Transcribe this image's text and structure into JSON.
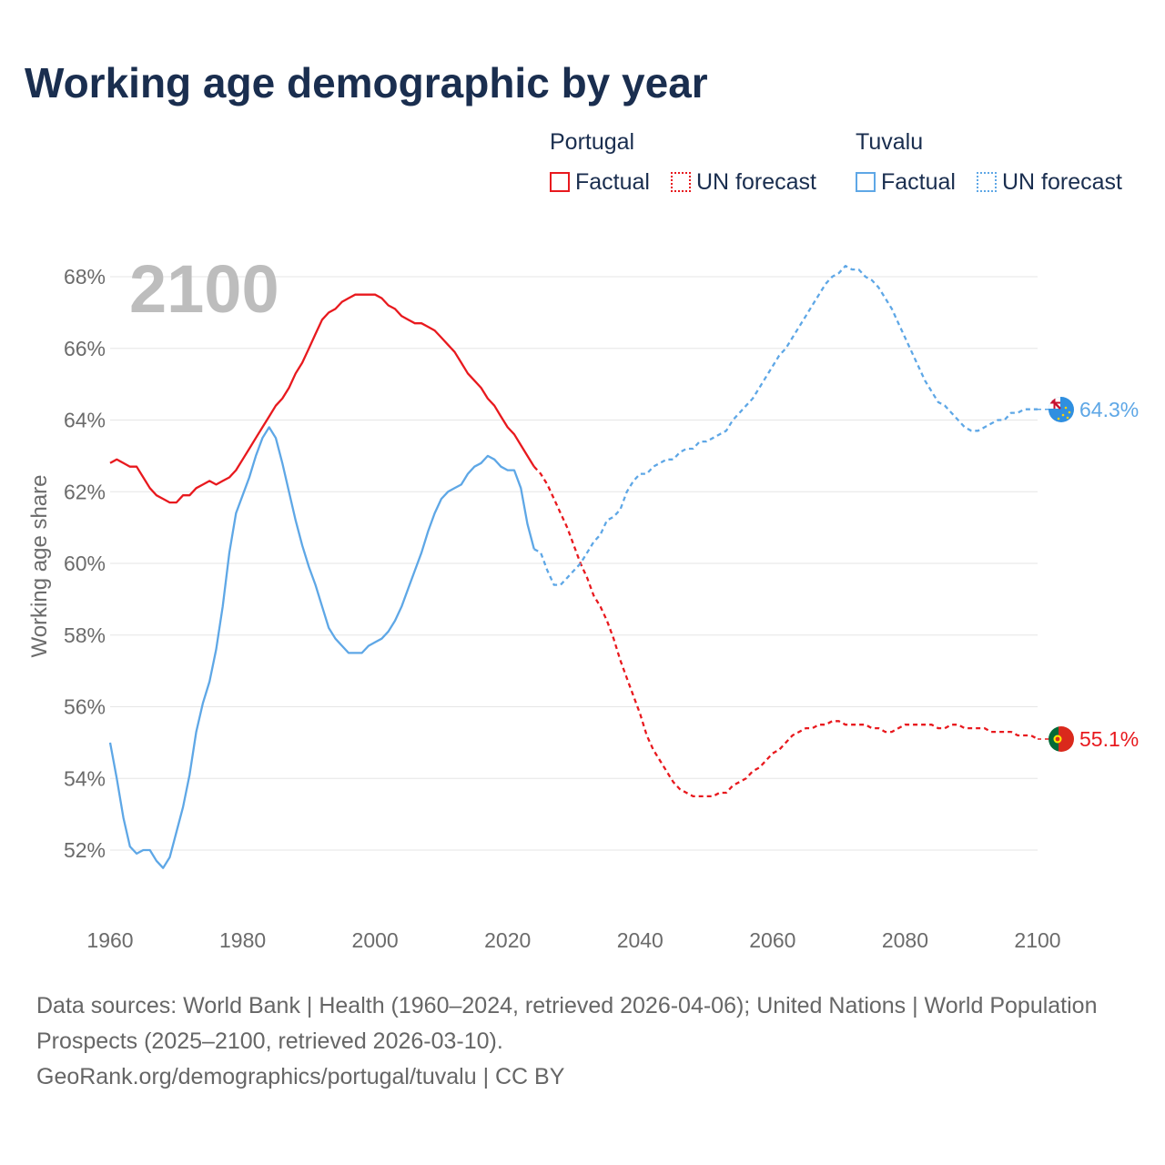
{
  "title": "Working age demographic by year",
  "legend": {
    "groups": [
      {
        "name": "Portugal",
        "factual_label": "Factual",
        "forecast_label": "UN forecast",
        "color": "#e8191e"
      },
      {
        "name": "Tuvalu",
        "factual_label": "Factual",
        "forecast_label": "UN forecast",
        "color": "#5ea7e6"
      }
    ]
  },
  "year_watermark": "2100",
  "footer": {
    "line1": "Data sources: World Bank | Health (1960–2024, retrieved 2026-04-06); United Nations | World Population Prospects (2025–2100, retrieved 2026-03-10).",
    "line2": "GeoRank.org/demographics/portugal/tuvalu | CC BY"
  },
  "chart_data": {
    "type": "line",
    "title": "Working age demographic by year",
    "xlabel": "",
    "ylabel": "Working age share",
    "xlim": [
      1960,
      2100
    ],
    "ylim": [
      50.5,
      69
    ],
    "x_ticks": [
      1960,
      1980,
      2000,
      2020,
      2040,
      2060,
      2080,
      2100
    ],
    "y_ticks": [
      52,
      54,
      56,
      58,
      60,
      62,
      64,
      66,
      68
    ],
    "y_tick_suffix": "%",
    "grid": true,
    "factual_end_year": 2024,
    "series": [
      {
        "name": "Portugal",
        "color": "#e8191e",
        "end_label": "55.1%",
        "points": [
          [
            1960,
            62.8
          ],
          [
            1961,
            62.9
          ],
          [
            1962,
            62.8
          ],
          [
            1963,
            62.7
          ],
          [
            1964,
            62.7
          ],
          [
            1965,
            62.4
          ],
          [
            1966,
            62.1
          ],
          [
            1967,
            61.9
          ],
          [
            1968,
            61.8
          ],
          [
            1969,
            61.7
          ],
          [
            1970,
            61.7
          ],
          [
            1971,
            61.9
          ],
          [
            1972,
            61.9
          ],
          [
            1973,
            62.1
          ],
          [
            1974,
            62.2
          ],
          [
            1975,
            62.3
          ],
          [
            1976,
            62.2
          ],
          [
            1977,
            62.3
          ],
          [
            1978,
            62.4
          ],
          [
            1979,
            62.6
          ],
          [
            1980,
            62.9
          ],
          [
            1981,
            63.2
          ],
          [
            1982,
            63.5
          ],
          [
            1983,
            63.8
          ],
          [
            1984,
            64.1
          ],
          [
            1985,
            64.4
          ],
          [
            1986,
            64.6
          ],
          [
            1987,
            64.9
          ],
          [
            1988,
            65.3
          ],
          [
            1989,
            65.6
          ],
          [
            1990,
            66.0
          ],
          [
            1991,
            66.4
          ],
          [
            1992,
            66.8
          ],
          [
            1993,
            67.0
          ],
          [
            1994,
            67.1
          ],
          [
            1995,
            67.3
          ],
          [
            1996,
            67.4
          ],
          [
            1997,
            67.5
          ],
          [
            1998,
            67.5
          ],
          [
            1999,
            67.5
          ],
          [
            2000,
            67.5
          ],
          [
            2001,
            67.4
          ],
          [
            2002,
            67.2
          ],
          [
            2003,
            67.1
          ],
          [
            2004,
            66.9
          ],
          [
            2005,
            66.8
          ],
          [
            2006,
            66.7
          ],
          [
            2007,
            66.7
          ],
          [
            2008,
            66.6
          ],
          [
            2009,
            66.5
          ],
          [
            2010,
            66.3
          ],
          [
            2011,
            66.1
          ],
          [
            2012,
            65.9
          ],
          [
            2013,
            65.6
          ],
          [
            2014,
            65.3
          ],
          [
            2015,
            65.1
          ],
          [
            2016,
            64.9
          ],
          [
            2017,
            64.6
          ],
          [
            2018,
            64.4
          ],
          [
            2019,
            64.1
          ],
          [
            2020,
            63.8
          ],
          [
            2021,
            63.6
          ],
          [
            2022,
            63.3
          ],
          [
            2023,
            63.0
          ],
          [
            2024,
            62.7
          ],
          [
            2025,
            62.5
          ],
          [
            2026,
            62.2
          ],
          [
            2027,
            61.8
          ],
          [
            2028,
            61.4
          ],
          [
            2029,
            61.0
          ],
          [
            2030,
            60.5
          ],
          [
            2031,
            60.0
          ],
          [
            2032,
            59.6
          ],
          [
            2033,
            59.1
          ],
          [
            2034,
            58.8
          ],
          [
            2035,
            58.4
          ],
          [
            2036,
            57.9
          ],
          [
            2037,
            57.3
          ],
          [
            2038,
            56.8
          ],
          [
            2039,
            56.3
          ],
          [
            2040,
            55.8
          ],
          [
            2041,
            55.2
          ],
          [
            2042,
            54.8
          ],
          [
            2043,
            54.5
          ],
          [
            2044,
            54.2
          ],
          [
            2045,
            53.9
          ],
          [
            2046,
            53.7
          ],
          [
            2047,
            53.6
          ],
          [
            2048,
            53.5
          ],
          [
            2049,
            53.5
          ],
          [
            2050,
            53.5
          ],
          [
            2051,
            53.5
          ],
          [
            2052,
            53.6
          ],
          [
            2053,
            53.6
          ],
          [
            2054,
            53.8
          ],
          [
            2055,
            53.9
          ],
          [
            2056,
            54.0
          ],
          [
            2057,
            54.2
          ],
          [
            2058,
            54.3
          ],
          [
            2059,
            54.5
          ],
          [
            2060,
            54.7
          ],
          [
            2061,
            54.8
          ],
          [
            2062,
            55.0
          ],
          [
            2063,
            55.2
          ],
          [
            2064,
            55.3
          ],
          [
            2065,
            55.4
          ],
          [
            2066,
            55.4
          ],
          [
            2067,
            55.5
          ],
          [
            2068,
            55.5
          ],
          [
            2069,
            55.6
          ],
          [
            2070,
            55.6
          ],
          [
            2071,
            55.5
          ],
          [
            2072,
            55.5
          ],
          [
            2073,
            55.5
          ],
          [
            2074,
            55.5
          ],
          [
            2075,
            55.4
          ],
          [
            2076,
            55.4
          ],
          [
            2077,
            55.3
          ],
          [
            2078,
            55.3
          ],
          [
            2079,
            55.4
          ],
          [
            2080,
            55.5
          ],
          [
            2081,
            55.5
          ],
          [
            2082,
            55.5
          ],
          [
            2083,
            55.5
          ],
          [
            2084,
            55.5
          ],
          [
            2085,
            55.4
          ],
          [
            2086,
            55.4
          ],
          [
            2087,
            55.5
          ],
          [
            2088,
            55.5
          ],
          [
            2089,
            55.4
          ],
          [
            2090,
            55.4
          ],
          [
            2091,
            55.4
          ],
          [
            2092,
            55.4
          ],
          [
            2093,
            55.3
          ],
          [
            2094,
            55.3
          ],
          [
            2095,
            55.3
          ],
          [
            2096,
            55.3
          ],
          [
            2097,
            55.2
          ],
          [
            2098,
            55.2
          ],
          [
            2099,
            55.2
          ],
          [
            2100,
            55.1
          ]
        ]
      },
      {
        "name": "Tuvalu",
        "color": "#5ea7e6",
        "end_label": "64.3%",
        "points": [
          [
            1960,
            55.0
          ],
          [
            1961,
            54.0
          ],
          [
            1962,
            52.9
          ],
          [
            1963,
            52.1
          ],
          [
            1964,
            51.9
          ],
          [
            1965,
            52.0
          ],
          [
            1966,
            52.0
          ],
          [
            1967,
            51.7
          ],
          [
            1968,
            51.5
          ],
          [
            1969,
            51.8
          ],
          [
            1970,
            52.5
          ],
          [
            1971,
            53.2
          ],
          [
            1972,
            54.1
          ],
          [
            1973,
            55.3
          ],
          [
            1974,
            56.1
          ],
          [
            1975,
            56.7
          ],
          [
            1976,
            57.6
          ],
          [
            1977,
            58.8
          ],
          [
            1978,
            60.3
          ],
          [
            1979,
            61.4
          ],
          [
            1980,
            61.9
          ],
          [
            1981,
            62.4
          ],
          [
            1982,
            63.0
          ],
          [
            1983,
            63.5
          ],
          [
            1984,
            63.8
          ],
          [
            1985,
            63.5
          ],
          [
            1986,
            62.8
          ],
          [
            1987,
            62.0
          ],
          [
            1988,
            61.2
          ],
          [
            1989,
            60.5
          ],
          [
            1990,
            59.9
          ],
          [
            1991,
            59.4
          ],
          [
            1992,
            58.8
          ],
          [
            1993,
            58.2
          ],
          [
            1994,
            57.9
          ],
          [
            1995,
            57.7
          ],
          [
            1996,
            57.5
          ],
          [
            1997,
            57.5
          ],
          [
            1998,
            57.5
          ],
          [
            1999,
            57.7
          ],
          [
            2000,
            57.8
          ],
          [
            2001,
            57.9
          ],
          [
            2002,
            58.1
          ],
          [
            2003,
            58.4
          ],
          [
            2004,
            58.8
          ],
          [
            2005,
            59.3
          ],
          [
            2006,
            59.8
          ],
          [
            2007,
            60.3
          ],
          [
            2008,
            60.9
          ],
          [
            2009,
            61.4
          ],
          [
            2010,
            61.8
          ],
          [
            2011,
            62.0
          ],
          [
            2012,
            62.1
          ],
          [
            2013,
            62.2
          ],
          [
            2014,
            62.5
          ],
          [
            2015,
            62.7
          ],
          [
            2016,
            62.8
          ],
          [
            2017,
            63.0
          ],
          [
            2018,
            62.9
          ],
          [
            2019,
            62.7
          ],
          [
            2020,
            62.6
          ],
          [
            2021,
            62.6
          ],
          [
            2022,
            62.1
          ],
          [
            2023,
            61.1
          ],
          [
            2024,
            60.4
          ],
          [
            2025,
            60.3
          ],
          [
            2026,
            59.8
          ],
          [
            2027,
            59.4
          ],
          [
            2028,
            59.4
          ],
          [
            2029,
            59.6
          ],
          [
            2030,
            59.8
          ],
          [
            2031,
            60.0
          ],
          [
            2032,
            60.3
          ],
          [
            2033,
            60.6
          ],
          [
            2034,
            60.8
          ],
          [
            2035,
            61.2
          ],
          [
            2036,
            61.3
          ],
          [
            2037,
            61.5
          ],
          [
            2038,
            62.0
          ],
          [
            2039,
            62.3
          ],
          [
            2040,
            62.5
          ],
          [
            2041,
            62.5
          ],
          [
            2042,
            62.7
          ],
          [
            2043,
            62.8
          ],
          [
            2044,
            62.9
          ],
          [
            2045,
            62.9
          ],
          [
            2046,
            63.1
          ],
          [
            2047,
            63.2
          ],
          [
            2048,
            63.2
          ],
          [
            2049,
            63.4
          ],
          [
            2050,
            63.4
          ],
          [
            2051,
            63.5
          ],
          [
            2052,
            63.6
          ],
          [
            2053,
            63.7
          ],
          [
            2054,
            64.0
          ],
          [
            2055,
            64.2
          ],
          [
            2056,
            64.4
          ],
          [
            2057,
            64.6
          ],
          [
            2058,
            64.9
          ],
          [
            2059,
            65.2
          ],
          [
            2060,
            65.5
          ],
          [
            2061,
            65.8
          ],
          [
            2062,
            66.0
          ],
          [
            2063,
            66.3
          ],
          [
            2064,
            66.6
          ],
          [
            2065,
            66.9
          ],
          [
            2066,
            67.2
          ],
          [
            2067,
            67.5
          ],
          [
            2068,
            67.8
          ],
          [
            2069,
            68.0
          ],
          [
            2070,
            68.1
          ],
          [
            2071,
            68.3
          ],
          [
            2072,
            68.2
          ],
          [
            2073,
            68.2
          ],
          [
            2074,
            68.0
          ],
          [
            2075,
            67.9
          ],
          [
            2076,
            67.7
          ],
          [
            2077,
            67.4
          ],
          [
            2078,
            67.1
          ],
          [
            2079,
            66.7
          ],
          [
            2080,
            66.3
          ],
          [
            2081,
            65.9
          ],
          [
            2082,
            65.5
          ],
          [
            2083,
            65.1
          ],
          [
            2084,
            64.8
          ],
          [
            2085,
            64.5
          ],
          [
            2086,
            64.4
          ],
          [
            2087,
            64.2
          ],
          [
            2088,
            64.0
          ],
          [
            2089,
            63.8
          ],
          [
            2090,
            63.7
          ],
          [
            2091,
            63.7
          ],
          [
            2092,
            63.8
          ],
          [
            2093,
            63.9
          ],
          [
            2094,
            64.0
          ],
          [
            2095,
            64.0
          ],
          [
            2096,
            64.2
          ],
          [
            2097,
            64.2
          ],
          [
            2098,
            64.3
          ],
          [
            2099,
            64.3
          ],
          [
            2100,
            64.3
          ]
        ]
      }
    ]
  }
}
